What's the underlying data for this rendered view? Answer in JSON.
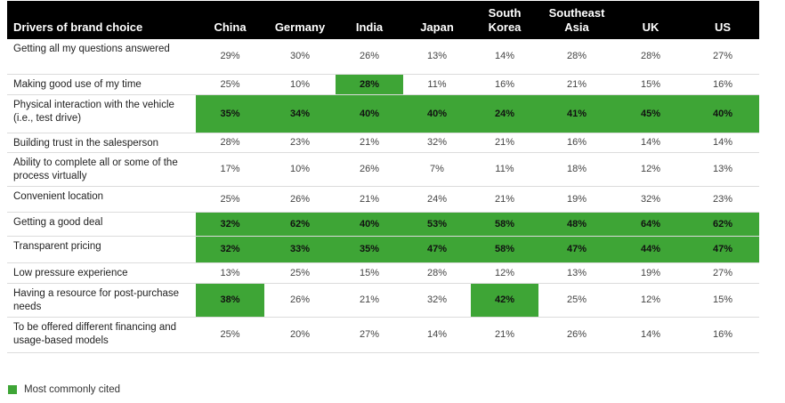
{
  "chart_data": {
    "type": "table",
    "header_label": "Drivers of brand choice",
    "columns": [
      "China",
      "Germany",
      "India",
      "Japan",
      "South\nKorea",
      "Southeast\nAsia",
      "UK",
      "US"
    ],
    "rows": [
      {
        "label": "Getting all my questions answered",
        "values": [
          "29%",
          "30%",
          "26%",
          "13%",
          "14%",
          "28%",
          "28%",
          "27%"
        ],
        "highlight": [
          false,
          false,
          false,
          false,
          false,
          false,
          false,
          false
        ]
      },
      {
        "label": "Making good use of my time",
        "values": [
          "25%",
          "10%",
          "28%",
          "11%",
          "16%",
          "21%",
          "15%",
          "16%"
        ],
        "highlight": [
          false,
          false,
          true,
          false,
          false,
          false,
          false,
          false
        ]
      },
      {
        "label": "Physical interaction with the vehicle (i.e., test drive)",
        "values": [
          "35%",
          "34%",
          "40%",
          "40%",
          "24%",
          "41%",
          "45%",
          "40%"
        ],
        "highlight": [
          true,
          true,
          true,
          true,
          true,
          true,
          true,
          true
        ]
      },
      {
        "label": "Building trust in the salesperson",
        "values": [
          "28%",
          "23%",
          "21%",
          "32%",
          "21%",
          "16%",
          "14%",
          "14%"
        ],
        "highlight": [
          false,
          false,
          false,
          false,
          false,
          false,
          false,
          false
        ]
      },
      {
        "label": "Ability to complete all or some of the process virtually",
        "values": [
          "17%",
          "10%",
          "26%",
          "7%",
          "11%",
          "18%",
          "12%",
          "13%"
        ],
        "highlight": [
          false,
          false,
          false,
          false,
          false,
          false,
          false,
          false
        ]
      },
      {
        "label": "Convenient location",
        "values": [
          "25%",
          "26%",
          "21%",
          "24%",
          "21%",
          "19%",
          "32%",
          "23%"
        ],
        "highlight": [
          false,
          false,
          false,
          false,
          false,
          false,
          false,
          false
        ]
      },
      {
        "label": "Getting a good deal",
        "values": [
          "32%",
          "62%",
          "40%",
          "53%",
          "58%",
          "48%",
          "64%",
          "62%"
        ],
        "highlight": [
          true,
          true,
          true,
          true,
          true,
          true,
          true,
          true
        ]
      },
      {
        "label": "Transparent pricing",
        "values": [
          "32%",
          "33%",
          "35%",
          "47%",
          "58%",
          "47%",
          "44%",
          "47%"
        ],
        "highlight": [
          true,
          true,
          true,
          true,
          true,
          true,
          true,
          true
        ]
      },
      {
        "label": "Low pressure experience",
        "values": [
          "13%",
          "25%",
          "15%",
          "28%",
          "12%",
          "13%",
          "19%",
          "27%"
        ],
        "highlight": [
          false,
          false,
          false,
          false,
          false,
          false,
          false,
          false
        ]
      },
      {
        "label": "Having a resource for post-purchase needs",
        "values": [
          "38%",
          "26%",
          "21%",
          "32%",
          "42%",
          "25%",
          "12%",
          "15%"
        ],
        "highlight": [
          true,
          false,
          false,
          false,
          true,
          false,
          false,
          false
        ]
      },
      {
        "label": "To be offered different financing and usage-based models",
        "values": [
          "25%",
          "20%",
          "27%",
          "14%",
          "21%",
          "26%",
          "14%",
          "16%"
        ],
        "highlight": [
          false,
          false,
          false,
          false,
          false,
          false,
          false,
          false
        ]
      }
    ],
    "legend": {
      "label": "Most commonly cited",
      "color": "#3ea536"
    }
  }
}
